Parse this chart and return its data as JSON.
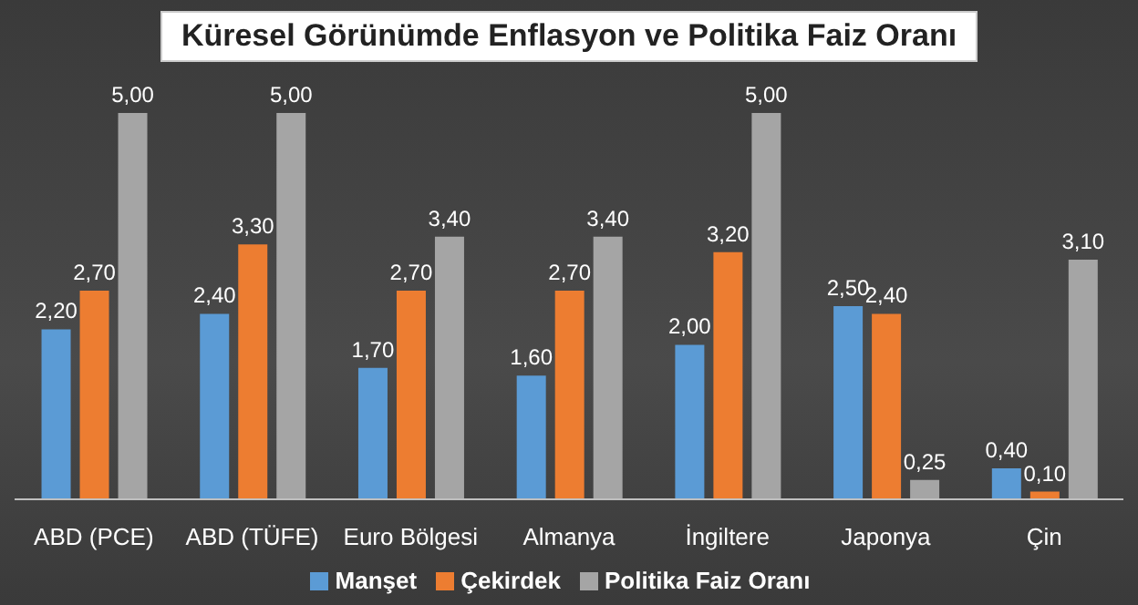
{
  "chart_data": {
    "type": "bar",
    "title": "Küresel Görünümde Enflasyon ve Politika Faiz Oranı",
    "categories": [
      "ABD (PCE)",
      "ABD (TÜFE)",
      "Euro Bölgesi",
      "Almanya",
      "İngiltere",
      "Japonya",
      "Çin"
    ],
    "series": [
      {
        "name": "Manşet",
        "color": "#5b9bd5",
        "values": [
          2.2,
          2.4,
          1.7,
          1.6,
          2.0,
          2.5,
          0.4
        ],
        "value_labels": [
          "2,20",
          "2,40",
          "1,70",
          "1,60",
          "2,00",
          "2,50",
          "0,40"
        ]
      },
      {
        "name": "Çekirdek",
        "color": "#ed7d31",
        "values": [
          2.7,
          3.3,
          2.7,
          2.7,
          3.2,
          2.4,
          0.1
        ],
        "value_labels": [
          "2,70",
          "3,30",
          "2,70",
          "2,70",
          "3,20",
          "2,40",
          "0,10"
        ]
      },
      {
        "name": "Politika Faiz Oranı",
        "color": "#a5a5a5",
        "values": [
          5.0,
          5.0,
          3.4,
          3.4,
          5.0,
          0.25,
          3.1
        ],
        "value_labels": [
          "5,00",
          "5,00",
          "3,40",
          "3,40",
          "5,00",
          "0,25",
          "3,10"
        ]
      }
    ],
    "legend": "bottom",
    "grid": false
  }
}
